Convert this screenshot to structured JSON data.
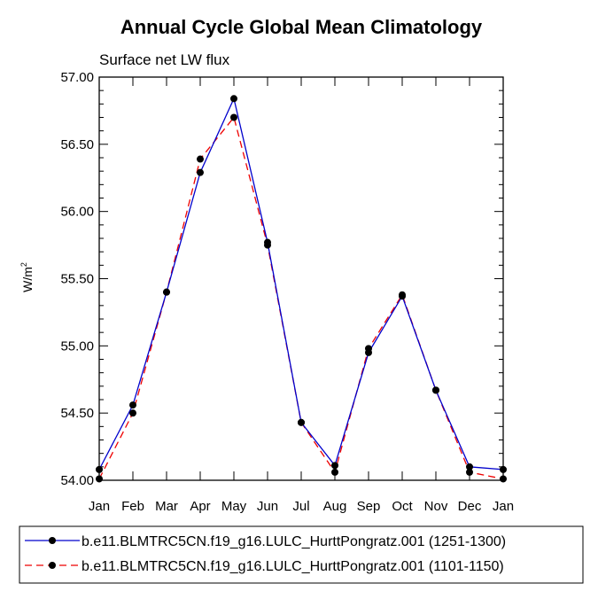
{
  "chart_data": {
    "type": "line",
    "title": "Annual Cycle Global Mean Climatology",
    "subtitle": "Surface net LW flux",
    "ylabel": "W/m",
    "ylabel_sup": "2",
    "xlabel": "",
    "categories": [
      "Jan",
      "Feb",
      "Mar",
      "Apr",
      "May",
      "Jun",
      "Jul",
      "Aug",
      "Sep",
      "Oct",
      "Nov",
      "Dec",
      "Jan"
    ],
    "ylim": [
      54.0,
      57.0
    ],
    "yticks": [
      54.0,
      54.5,
      55.0,
      55.5,
      56.0,
      56.5,
      57.0
    ],
    "ytick_labels": [
      "54.00",
      "54.50",
      "55.00",
      "55.50",
      "56.00",
      "56.50",
      "57.00"
    ],
    "series": [
      {
        "name": "b.e11.BLMTRC5CN.f19_g16.LULC_HurttPongratz.001 (1251-1300)",
        "color": "#0000cc",
        "dash": "solid",
        "values": [
          54.08,
          54.56,
          55.4,
          56.29,
          56.84,
          55.77,
          54.43,
          54.11,
          54.95,
          55.37,
          54.67,
          54.1,
          54.08
        ]
      },
      {
        "name": "b.e11.BLMTRC5CN.f19_g16.LULC_HurttPongratz.001 (1101-1150)",
        "color": "#ee0000",
        "dash": "dashed",
        "values": [
          54.01,
          54.5,
          55.4,
          56.39,
          56.7,
          55.75,
          54.43,
          54.06,
          54.98,
          55.38,
          54.67,
          54.06,
          54.01
        ]
      }
    ],
    "marker_color": "#000000"
  }
}
